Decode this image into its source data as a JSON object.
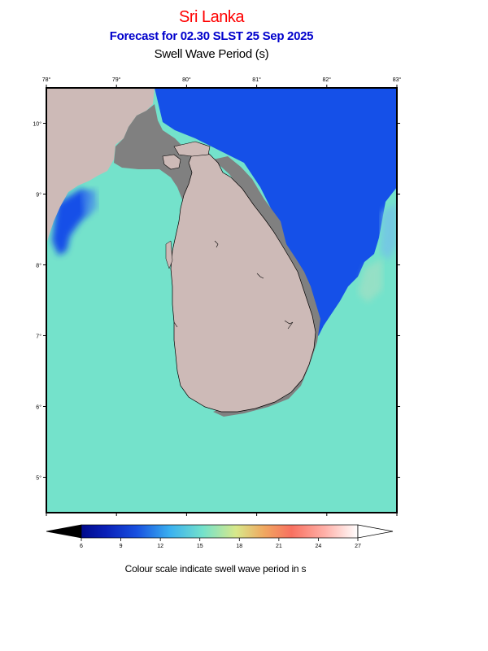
{
  "header": {
    "region": "Sri Lanka",
    "forecast": "Forecast for  02.30 SLST 25 Sep 2025",
    "parameter": "Swell Wave Period (s)"
  },
  "map": {
    "lon_ticks": [
      "78°",
      "79°",
      "80°",
      "81°",
      "82°",
      "83°"
    ],
    "lat_ticks": [
      "10°",
      "9°",
      "8°",
      "7°",
      "6°",
      "5°"
    ],
    "lon_range": [
      78,
      83
    ],
    "lat_range": [
      4.5,
      10.5
    ],
    "colors": {
      "sea_background": "#74e2cb",
      "long_period_sea": "#1550e8",
      "land": "#cdbab7",
      "no_data_coast": "#808080"
    }
  },
  "colorbar": {
    "ticks": [
      "6",
      "9",
      "12",
      "15",
      "18",
      "21",
      "24",
      "27"
    ],
    "range": [
      6,
      27
    ],
    "colors": [
      "#000000",
      "#000a8c",
      "#1840d8",
      "#3aa8f0",
      "#74e2cb",
      "#d8e88a",
      "#f0a060",
      "#f86a5a",
      "#ffb8b0",
      "#ffffff"
    ]
  },
  "caption": "Colour scale indicate swell wave period in s"
}
